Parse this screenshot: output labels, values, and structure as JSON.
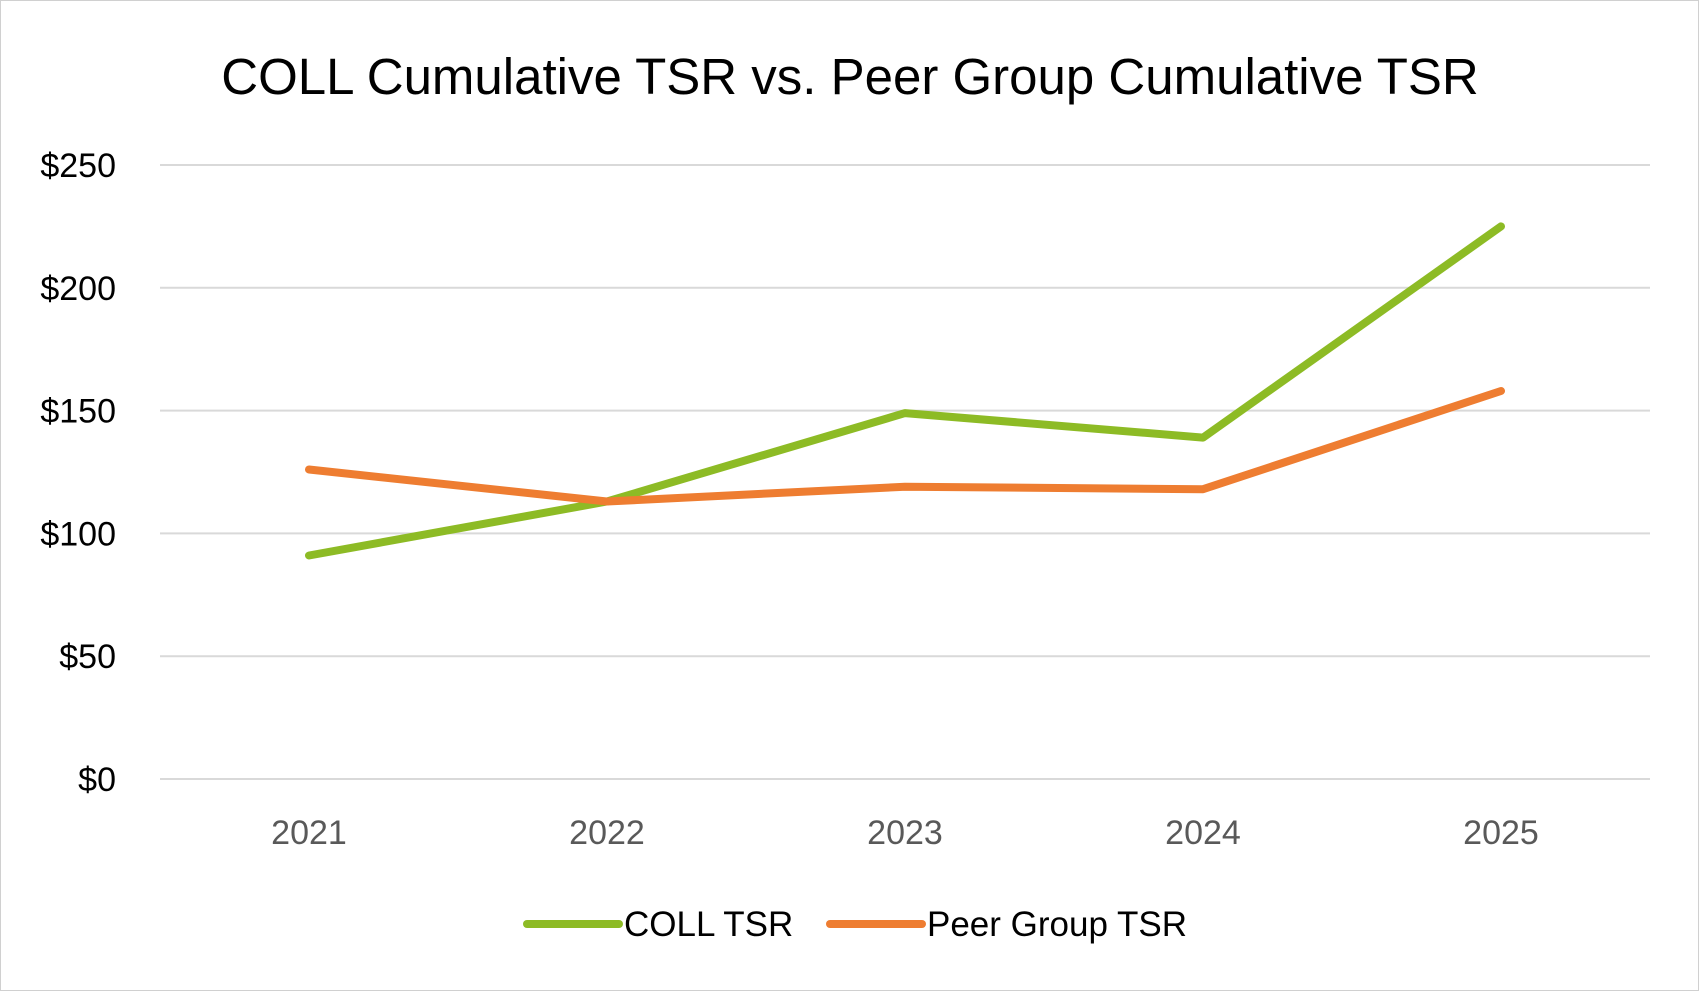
{
  "chart_data": {
    "type": "line",
    "title": "COLL Cumulative TSR vs. Peer Group Cumulative TSR",
    "categories": [
      "2021",
      "2022",
      "2023",
      "2024",
      "2025"
    ],
    "y_tick_labels": [
      "$0",
      "$50",
      "$100",
      "$150",
      "$200",
      "$250"
    ],
    "y_ticks": [
      0,
      50,
      100,
      150,
      200,
      250
    ],
    "ylim": [
      0,
      250
    ],
    "grid": true,
    "legend_position": "bottom",
    "series": [
      {
        "name": "COLL TSR",
        "color": "#8dbb25",
        "values": [
          91,
          113,
          149,
          139,
          225
        ]
      },
      {
        "name": "Peer Group TSR",
        "color": "#ee7d31",
        "values": [
          126,
          113,
          119,
          118,
          158
        ]
      }
    ]
  }
}
